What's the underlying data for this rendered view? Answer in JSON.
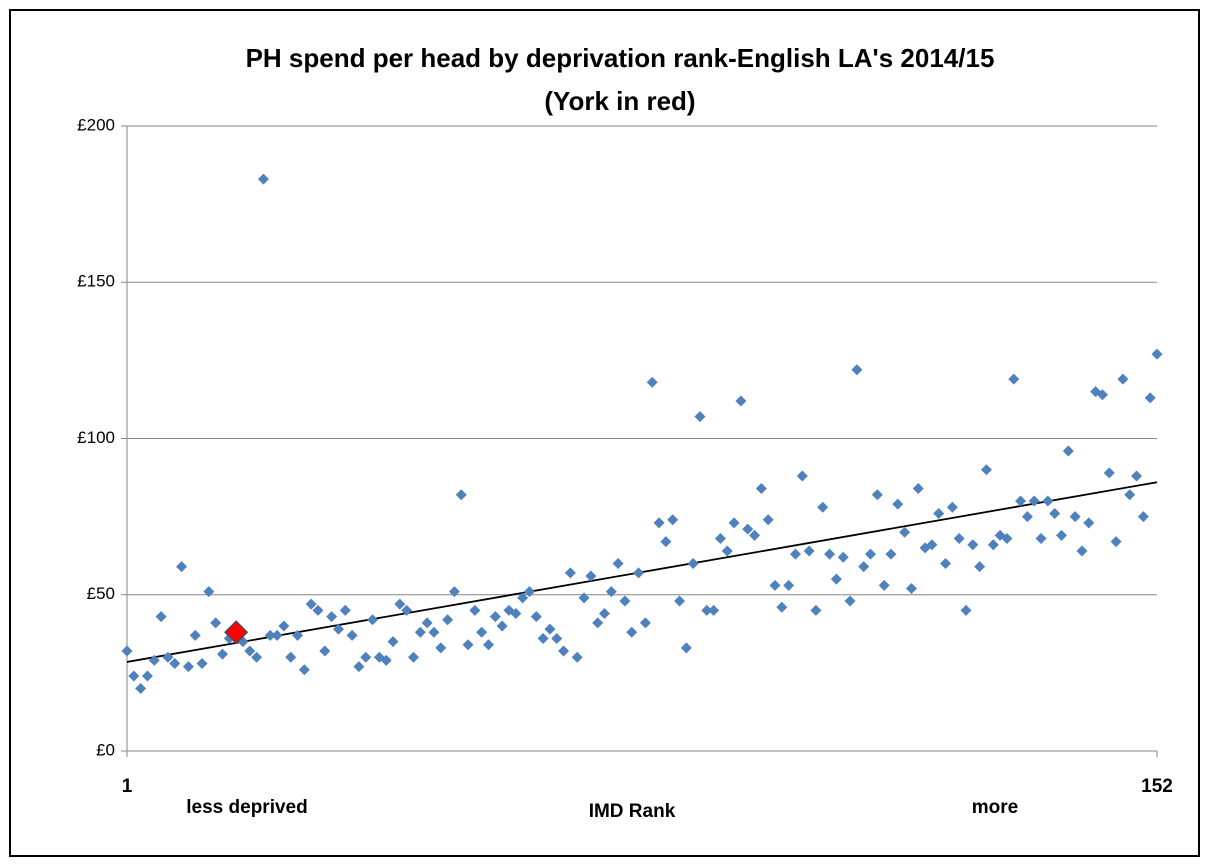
{
  "chart_data": {
    "type": "scatter",
    "title": "PH spend per head by deprivation rank-English LA's 2014/15",
    "subtitle": "(York in red)",
    "x_label": "IMD Rank",
    "x_annotations": [
      "less deprived",
      "more"
    ],
    "x": [
      1,
      2,
      3,
      4,
      5,
      6,
      7,
      8,
      9,
      10,
      11,
      12,
      13,
      14,
      15,
      16,
      17,
      18,
      19,
      20,
      21,
      22,
      23,
      24,
      25,
      26,
      27,
      28,
      29,
      30,
      31,
      32,
      33,
      34,
      35,
      36,
      37,
      38,
      39,
      40,
      41,
      42,
      43,
      44,
      45,
      46,
      47,
      48,
      49,
      50,
      51,
      52,
      53,
      54,
      55,
      56,
      57,
      58,
      59,
      60,
      61,
      62,
      63,
      64,
      65,
      66,
      67,
      68,
      69,
      70,
      71,
      72,
      73,
      74,
      75,
      76,
      77,
      78,
      79,
      80,
      81,
      82,
      83,
      84,
      85,
      86,
      87,
      88,
      89,
      90,
      91,
      92,
      93,
      94,
      95,
      96,
      97,
      98,
      99,
      100,
      101,
      102,
      103,
      104,
      105,
      106,
      107,
      108,
      109,
      110,
      111,
      112,
      113,
      114,
      115,
      116,
      117,
      118,
      119,
      120,
      121,
      122,
      123,
      124,
      125,
      126,
      127,
      128,
      129,
      130,
      131,
      132,
      133,
      134,
      135,
      136,
      137,
      138,
      139,
      140,
      141,
      142,
      143,
      144,
      145,
      146,
      147,
      148,
      149,
      150,
      151,
      152
    ],
    "values": [
      32,
      24,
      20,
      24,
      29,
      43,
      30,
      28,
      59,
      27,
      37,
      28,
      51,
      41,
      31,
      36,
      38,
      35,
      32,
      30,
      183,
      37,
      37,
      40,
      30,
      37,
      26,
      47,
      45,
      32,
      43,
      39,
      45,
      37,
      27,
      30,
      42,
      30,
      29,
      35,
      47,
      45,
      30,
      38,
      41,
      38,
      33,
      42,
      51,
      82,
      34,
      45,
      38,
      34,
      43,
      40,
      45,
      44,
      49,
      51,
      43,
      36,
      39,
      36,
      32,
      57,
      30,
      49,
      56,
      41,
      44,
      51,
      60,
      48,
      38,
      57,
      41,
      118,
      73,
      67,
      74,
      48,
      33,
      60,
      107,
      45,
      45,
      68,
      64,
      73,
      112,
      71,
      69,
      84,
      74,
      53,
      46,
      53,
      63,
      88,
      64,
      45,
      78,
      63,
      55,
      62,
      48,
      122,
      59,
      63,
      82,
      53,
      63,
      79,
      70,
      52,
      84,
      65,
      66,
      76,
      60,
      78,
      68,
      45,
      66,
      59,
      90,
      66,
      69,
      68,
      119,
      80,
      75,
      80,
      68,
      80,
      76,
      69,
      96,
      75,
      64,
      73,
      115,
      114,
      89,
      67,
      119,
      82,
      88,
      75,
      113,
      127
    ],
    "color": "#4f81bd",
    "highlight_index": 16,
    "highlight_color": "#ff0000",
    "trendline": {
      "x": [
        1,
        152
      ],
      "values": [
        28.5,
        86
      ],
      "color": "#000000"
    },
    "xlim": [
      1,
      152
    ],
    "xticks": [
      1,
      152
    ],
    "ylim": [
      0,
      200
    ],
    "yticks": [
      {
        "value": 0,
        "label": "£0"
      },
      {
        "value": 50,
        "label": "£50"
      },
      {
        "value": 100,
        "label": "£100"
      },
      {
        "value": 150,
        "label": "£150"
      },
      {
        "value": 200,
        "label": "£200"
      }
    ],
    "grid": true
  }
}
